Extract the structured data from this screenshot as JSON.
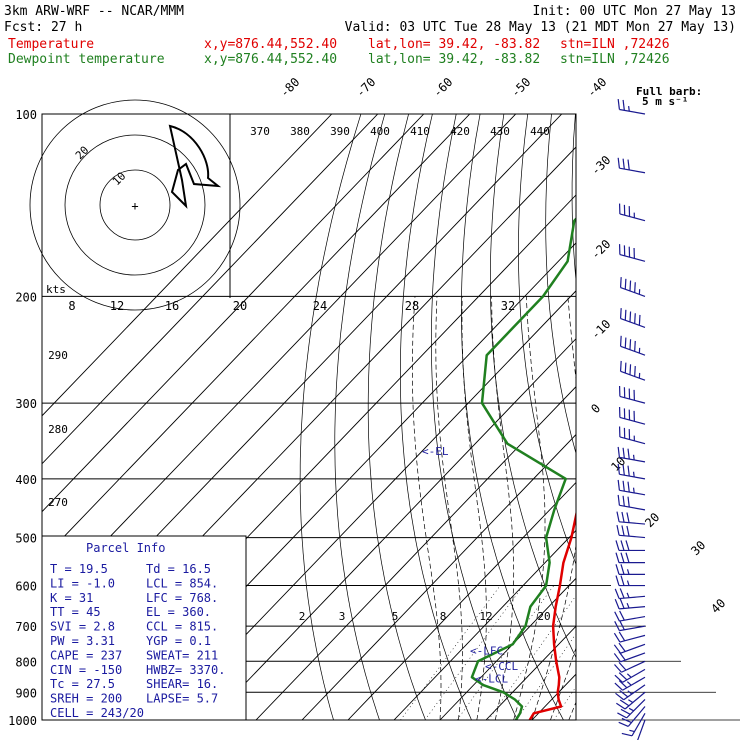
{
  "header": {
    "model": "3km ARW-WRF -- NCAR/MMM",
    "init": "Init: 00 UTC Mon 27 May 13",
    "fcst": "Fcst:    27 h",
    "valid": "Valid: 03 UTC Tue 28 May 13 (21 MDT Mon 27 May 13)",
    "line_temp": {
      "label": "Temperature",
      "xy": "x,y=876.44,552.40",
      "latlon": "lat,lon= 39.42, -83.82",
      "stn": "stn=ILN ,72426"
    },
    "line_dew": {
      "label": "Dewpoint temperature",
      "xy": "x,y=876.44,552.40",
      "latlon": "lat,lon= 39.42, -83.82",
      "stn": "stn=ILN ,72426"
    }
  },
  "wind_legend": {
    "line1": "Full barb:",
    "line2": "5 m s⁻¹"
  },
  "parcel_info": {
    "title": "Parcel Info",
    "rows": [
      [
        "T    =  19.5",
        "Td  =   16.5"
      ],
      [
        "LI   =  -1.0",
        "LCL =   854."
      ],
      [
        "K    =    31",
        "LFC =   768."
      ],
      [
        "TT   =    45",
        "EL  =   360."
      ],
      [
        "SVI  =   2.8",
        "CCL =   815."
      ],
      [
        "PW   =  3.31",
        "YGP =    0.1"
      ],
      [
        "CAPE =   237",
        "SWEAT=   211"
      ],
      [
        "CIN  =  -150",
        "HWBZ= 3370."
      ],
      [
        "Tc   =  27.5",
        "SHEAR=   16."
      ],
      [
        "SREH =   200",
        "LAPSE=   5.7"
      ],
      [
        "CELL = 243/20",
        ""
      ]
    ]
  },
  "hodograph": {
    "units_label": "kts",
    "ring_labels": [
      "10",
      "20"
    ]
  },
  "levels": {
    "lfc": "LFC",
    "ccl": "CCL",
    "lcl": "LCL",
    "el": "EL"
  },
  "chart_data": {
    "type": "line",
    "title": "",
    "ylabel": "",
    "pressure_levels": [
      100,
      200,
      300,
      400,
      500,
      600,
      700,
      800,
      900,
      1000
    ],
    "isotherm_labels": [
      -80,
      -70,
      -60,
      -50,
      -40,
      -30,
      -20,
      -10,
      0,
      10,
      20,
      30,
      40
    ],
    "theta_labels": [
      370,
      380,
      390,
      400,
      410,
      420,
      430,
      440
    ],
    "theta_left_labels": [
      290,
      280,
      270
    ],
    "mixing_ratio_labels": [
      "2",
      "3",
      "5",
      "8",
      "12",
      "20"
    ],
    "hodo_speed_labels": [
      "8",
      "12",
      "16",
      "20",
      "24",
      "28",
      "32"
    ],
    "series": [
      {
        "name": "Temperature",
        "color": "#e00000",
        "p": [
          1000,
          975,
          950,
          925,
          900,
          875,
          850,
          800,
          750,
          700,
          650,
          600,
          550,
          500,
          450,
          400,
          350,
          300,
          250,
          200,
          175,
          150,
          140,
          125,
          112,
          100
        ],
        "t": [
          19.5,
          19.0,
          23.5,
          21.5,
          19.8,
          18.5,
          17.0,
          13.0,
          9.0,
          5.0,
          1.5,
          -2.0,
          -6.0,
          -9.5,
          -14.0,
          -19.0,
          -26.0,
          -34.0,
          -43.0,
          -52.0,
          -56.0,
          -60.0,
          -58.0,
          -52.0,
          -58.0,
          -62.0
        ]
      },
      {
        "name": "Dewpoint temperature",
        "color": "#208020",
        "p": [
          1000,
          975,
          950,
          925,
          900,
          875,
          850,
          800,
          750,
          700,
          650,
          600,
          550,
          500,
          450,
          400,
          350,
          300,
          250,
          200,
          175,
          150,
          140,
          125,
          112,
          100
        ],
        "t": [
          16.5,
          16.0,
          15.0,
          12.0,
          8.0,
          2.0,
          -2.0,
          -4.0,
          0.0,
          -1.0,
          -4.0,
          -5.0,
          -9.0,
          -15.0,
          -19.0,
          -23.0,
          -43.0,
          -57.0,
          -66.0,
          -66.0,
          -68.0,
          -75.0,
          -75.0,
          -75.0,
          -77.0,
          -79.0
        ]
      }
    ],
    "wind_barbs": [
      {
        "p": 1000,
        "dir": 200,
        "spd": 10
      },
      {
        "p": 975,
        "dir": 210,
        "spd": 15
      },
      {
        "p": 950,
        "dir": 220,
        "spd": 20
      },
      {
        "p": 925,
        "dir": 225,
        "spd": 25
      },
      {
        "p": 900,
        "dir": 230,
        "spd": 25
      },
      {
        "p": 875,
        "dir": 235,
        "spd": 25
      },
      {
        "p": 850,
        "dir": 240,
        "spd": 25
      },
      {
        "p": 825,
        "dir": 240,
        "spd": 25
      },
      {
        "p": 800,
        "dir": 245,
        "spd": 20
      },
      {
        "p": 775,
        "dir": 250,
        "spd": 20
      },
      {
        "p": 750,
        "dir": 250,
        "spd": 20
      },
      {
        "p": 725,
        "dir": 255,
        "spd": 20
      },
      {
        "p": 700,
        "dir": 260,
        "spd": 20
      },
      {
        "p": 675,
        "dir": 260,
        "spd": 20
      },
      {
        "p": 650,
        "dir": 265,
        "spd": 25
      },
      {
        "p": 625,
        "dir": 265,
        "spd": 25
      },
      {
        "p": 600,
        "dir": 270,
        "spd": 25
      },
      {
        "p": 575,
        "dir": 270,
        "spd": 25
      },
      {
        "p": 550,
        "dir": 270,
        "spd": 30
      },
      {
        "p": 525,
        "dir": 270,
        "spd": 30
      },
      {
        "p": 500,
        "dir": 275,
        "spd": 30
      },
      {
        "p": 475,
        "dir": 275,
        "spd": 30
      },
      {
        "p": 450,
        "dir": 280,
        "spd": 30
      },
      {
        "p": 425,
        "dir": 280,
        "spd": 35
      },
      {
        "p": 400,
        "dir": 280,
        "spd": 35
      },
      {
        "p": 375,
        "dir": 280,
        "spd": 35
      },
      {
        "p": 350,
        "dir": 285,
        "spd": 35
      },
      {
        "p": 325,
        "dir": 285,
        "spd": 40
      },
      {
        "p": 300,
        "dir": 285,
        "spd": 40
      },
      {
        "p": 275,
        "dir": 290,
        "spd": 45
      },
      {
        "p": 250,
        "dir": 290,
        "spd": 45
      },
      {
        "p": 225,
        "dir": 290,
        "spd": 50
      },
      {
        "p": 200,
        "dir": 290,
        "spd": 45
      },
      {
        "p": 175,
        "dir": 285,
        "spd": 40
      },
      {
        "p": 150,
        "dir": 285,
        "spd": 35
      },
      {
        "p": 125,
        "dir": 280,
        "spd": 30
      },
      {
        "p": 100,
        "dir": 280,
        "spd": 25
      }
    ]
  }
}
